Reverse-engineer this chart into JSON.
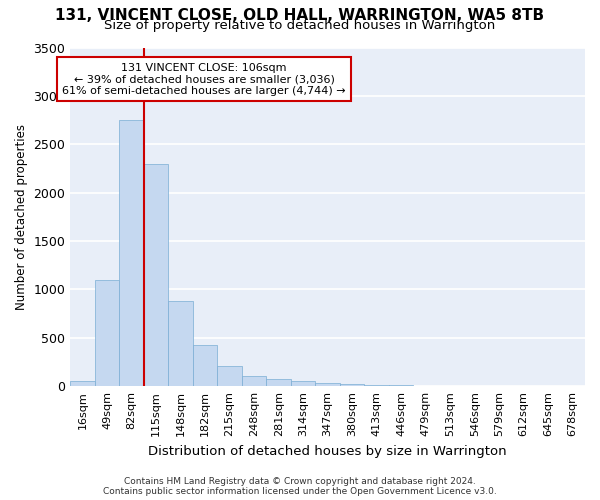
{
  "title": "131, VINCENT CLOSE, OLD HALL, WARRINGTON, WA5 8TB",
  "subtitle": "Size of property relative to detached houses in Warrington",
  "xlabel": "Distribution of detached houses by size in Warrington",
  "ylabel": "Number of detached properties",
  "footer_line1": "Contains HM Land Registry data © Crown copyright and database right 2024.",
  "footer_line2": "Contains public sector information licensed under the Open Government Licence v3.0.",
  "bar_labels": [
    "16sqm",
    "49sqm",
    "82sqm",
    "115sqm",
    "148sqm",
    "182sqm",
    "215sqm",
    "248sqm",
    "281sqm",
    "314sqm",
    "347sqm",
    "380sqm",
    "413sqm",
    "446sqm",
    "479sqm",
    "513sqm",
    "546sqm",
    "579sqm",
    "612sqm",
    "645sqm",
    "678sqm"
  ],
  "bar_values": [
    55,
    1100,
    2750,
    2300,
    880,
    430,
    205,
    105,
    75,
    50,
    30,
    20,
    15,
    10,
    5,
    5,
    2,
    2,
    1,
    1,
    0
  ],
  "bar_color": "#c5d8f0",
  "bar_edgecolor": "#7aadd4",
  "bg_color": "#e8eef8",
  "grid_color": "#ffffff",
  "vline_pos": 2.5,
  "annotation_title": "131 VINCENT CLOSE: 106sqm",
  "annotation_line1": "← 39% of detached houses are smaller (3,036)",
  "annotation_line2": "61% of semi-detached houses are larger (4,744) →",
  "annotation_box_color": "#ffffff",
  "annotation_border_color": "#cc0000",
  "vline_color": "#cc0000",
  "ylim": [
    0,
    3500
  ],
  "yticks": [
    0,
    500,
    1000,
    1500,
    2000,
    2500,
    3000,
    3500
  ]
}
